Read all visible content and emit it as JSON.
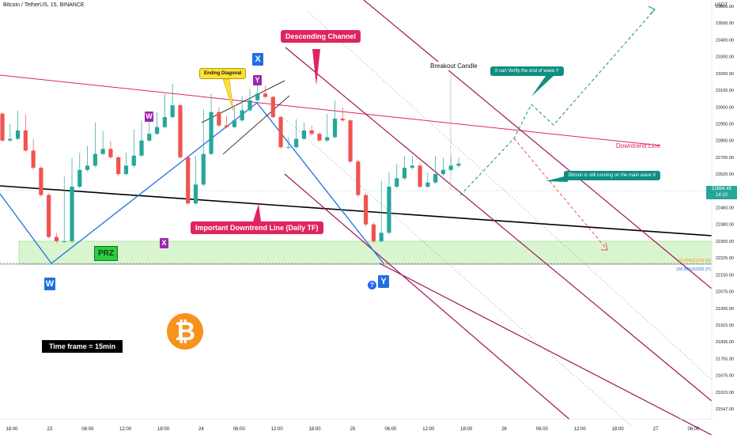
{
  "symbol_title": "Bitcoin / TetherUS, 15, BINANCE",
  "currency": "USDT",
  "price_tag": {
    "price": "22684.48",
    "countdown": "14:10"
  },
  "annotations": {
    "descending_channel": "Descending Channel",
    "ending_diagonal": "Ending Diagonal",
    "breakout_candle": "Breakout Candle",
    "verify_end": "It can Verify the end of wave Y",
    "still_running": "Bitcoin is still running on the main wave X",
    "important_downtrend": "Important Downtrend Line (Daily TF)",
    "downtrend_line": "Downtrend Line",
    "prz": "PRZ",
    "timeframe": "Time frame = 15min",
    "btc_logo": "₿",
    "question": "?",
    "fib_786": "78.60%(22296.96)",
    "fib_100": "100.00%(22292.37)"
  },
  "wave_labels": {
    "W": "W",
    "X": "X",
    "Y": "Y",
    "sub_W": "W",
    "sub_Y": "Y",
    "sub_X": "X"
  },
  "colors": {
    "bull": "#26a69a",
    "bear": "#ef5350",
    "channel": "#a0165e",
    "downtrend": "#e0245e",
    "wave_blue": "#1f6fe0",
    "wave_purple": "#9c27b0",
    "prz_zone": "#d8f5d0"
  },
  "chart_data": {
    "type": "candlestick",
    "title": "Bitcoin / TetherUS, 15, BINANCE",
    "ylabel": "USDT",
    "ylim": [
      21490,
      23690
    ],
    "y_ticks": [
      23600,
      23500,
      23400,
      23300,
      23200,
      23100,
      23000,
      22900,
      22800,
      22700,
      22620,
      22540,
      22460,
      22380,
      22300,
      22225,
      22150,
      22075,
      21995,
      21915,
      21835,
      21755,
      21675,
      21615,
      21547
    ],
    "x_ticks": [
      "18:00",
      "23",
      "06:00",
      "12:00",
      "18:00",
      "24",
      "06:00",
      "12:00",
      "18:00",
      "25",
      "06:00",
      "12:00",
      "18:00",
      "26",
      "06:00",
      "12:00",
      "18:00",
      "27",
      "06:00"
    ],
    "current_price": 22684.48,
    "price_path": [
      [
        22960,
        22800
      ],
      [
        22890,
        22810
      ],
      [
        22970,
        22860
      ],
      [
        22950,
        22740
      ],
      [
        22800,
        22650
      ],
      [
        22650,
        22520
      ],
      [
        22400,
        22320
      ],
      [
        22330,
        22300
      ],
      [
        22600,
        22300
      ],
      [
        22690,
        22560
      ],
      [
        22720,
        22640
      ],
      [
        22760,
        22660
      ],
      [
        22900,
        22720
      ],
      [
        22850,
        22750
      ],
      [
        22790,
        22700
      ],
      [
        22690,
        22620
      ],
      [
        22720,
        22660
      ],
      [
        22860,
        22710
      ],
      [
        22910,
        22800
      ],
      [
        22920,
        22840
      ],
      [
        22960,
        22880
      ],
      [
        23070,
        22940
      ],
      [
        23130,
        23010
      ],
      [
        22900,
        22700
      ],
      [
        22590,
        22480
      ],
      [
        22700,
        22570
      ],
      [
        22980,
        22720
      ],
      [
        23070,
        22970
      ],
      [
        22990,
        22890
      ],
      [
        22940,
        22880
      ],
      [
        23000,
        22920
      ],
      [
        23060,
        22980
      ],
      [
        23100,
        23040
      ],
      [
        23150,
        23080
      ],
      [
        23120,
        23060
      ],
      [
        23020,
        22940
      ],
      [
        22860,
        22760
      ],
      [
        22810,
        22760
      ],
      [
        22920,
        22810
      ],
      [
        22900,
        22860
      ],
      [
        22880,
        22840
      ],
      [
        22840,
        22800
      ],
      [
        22950,
        22820
      ],
      [
        23030,
        22930
      ],
      [
        22990,
        22920
      ],
      [
        22800,
        22680
      ],
      [
        22600,
        22520
      ],
      [
        22440,
        22380
      ],
      [
        22340,
        22300
      ],
      [
        22580,
        22340
      ],
      [
        22620,
        22560
      ],
      [
        22660,
        22600
      ],
      [
        22700,
        22650
      ],
      [
        22700,
        22660
      ],
      [
        22640,
        22560
      ],
      [
        22620,
        22580
      ],
      [
        22700,
        22620
      ],
      [
        22690,
        22640
      ],
      [
        22700,
        22660
      ],
      [
        22690,
        22670
      ]
    ]
  }
}
